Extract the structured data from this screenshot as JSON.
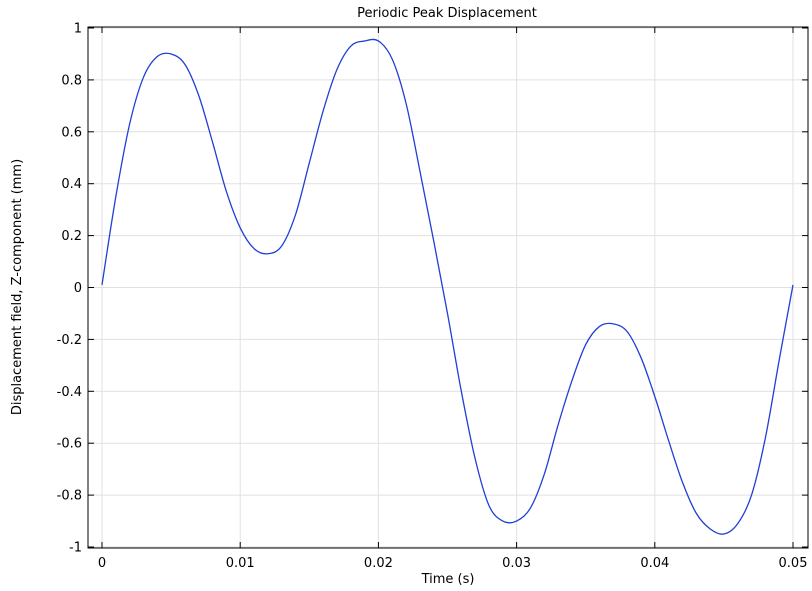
{
  "chart_data": {
    "type": "line",
    "title": "Periodic Peak Displacement",
    "xlabel": "Time (s)",
    "ylabel": "Displacement field, Z-component (mm)",
    "xlim": [
      0,
      0.05
    ],
    "ylim": [
      -1,
      1
    ],
    "x_ticks": [
      0,
      0.01,
      0.02,
      0.03,
      0.04,
      0.05
    ],
    "x_tick_labels": [
      "0",
      "0.01",
      "0.02",
      "0.03",
      "0.04",
      "0.05"
    ],
    "y_ticks": [
      -1,
      -0.8,
      -0.6,
      -0.4,
      -0.2,
      0,
      0.2,
      0.4,
      0.6,
      0.8,
      1
    ],
    "y_tick_labels": [
      "-1",
      "-0.8",
      "-0.6",
      "-0.4",
      "-0.2",
      "0",
      "0.2",
      "0.4",
      "0.6",
      "0.8",
      "1"
    ],
    "grid": true,
    "series": [
      {
        "color": "#1f3fd6",
        "x": [
          0,
          0.001,
          0.002,
          0.003,
          0.004,
          0.005,
          0.006,
          0.007,
          0.008,
          0.009,
          0.01,
          0.011,
          0.012,
          0.013,
          0.014,
          0.015,
          0.016,
          0.017,
          0.018,
          0.019,
          0.02,
          0.021,
          0.022,
          0.023,
          0.024,
          0.025,
          0.026,
          0.027,
          0.028,
          0.029,
          0.03,
          0.031,
          0.032,
          0.033,
          0.034,
          0.035,
          0.036,
          0.037,
          0.038,
          0.039,
          0.04,
          0.041,
          0.042,
          0.043,
          0.044,
          0.045,
          0.046,
          0.047,
          0.048,
          0.049,
          0.05
        ],
        "values": [
          0.01,
          0.35,
          0.63,
          0.81,
          0.89,
          0.9,
          0.86,
          0.74,
          0.56,
          0.37,
          0.23,
          0.15,
          0.13,
          0.16,
          0.28,
          0.48,
          0.68,
          0.84,
          0.93,
          0.95,
          0.95,
          0.88,
          0.71,
          0.45,
          0.18,
          -0.1,
          -0.4,
          -0.66,
          -0.84,
          -0.9,
          -0.9,
          -0.85,
          -0.72,
          -0.53,
          -0.36,
          -0.22,
          -0.15,
          -0.14,
          -0.17,
          -0.27,
          -0.42,
          -0.59,
          -0.75,
          -0.87,
          -0.93,
          -0.95,
          -0.91,
          -0.8,
          -0.58,
          -0.28,
          0.01
        ]
      }
    ]
  }
}
